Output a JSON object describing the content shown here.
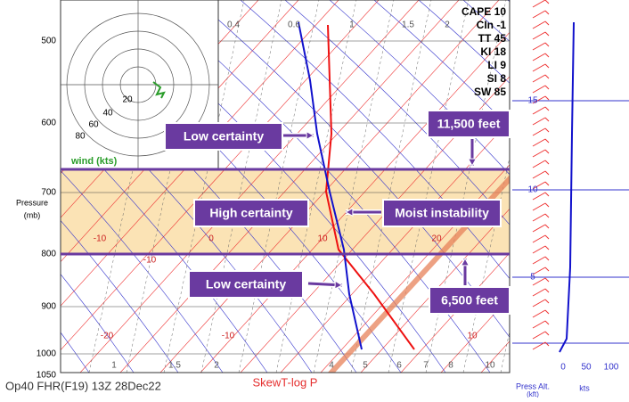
{
  "pressure_axis": {
    "title": "Pressure",
    "unit": "(mb)",
    "labels": [
      "500",
      "600",
      "700",
      "800",
      "900",
      "1000",
      "1050"
    ]
  },
  "hodograph": {
    "rings": [
      "20",
      "40",
      "60",
      "80"
    ],
    "label": "wind (kts)"
  },
  "indices": [
    "CAPE 10",
    "CIn -1",
    "TT 45",
    "KI 18",
    "LI 9",
    "SI 8",
    "SW 85"
  ],
  "isotherm_labels": [
    "-10",
    "0",
    "10",
    "20",
    "-10",
    "-20",
    "-10",
    "10"
  ],
  "mixing_ratio_top": [
    "0.4",
    "0.6",
    "1",
    "1.5",
    "2"
  ],
  "mixing_ratio_bottom": [
    "1",
    "1.5",
    "2",
    "4",
    "5",
    "6",
    "7",
    "8",
    "10"
  ],
  "callouts": [
    "Low certainty",
    "High certainty",
    "Moist instability",
    "11,500 feet",
    "Low certainty",
    "6,500 feet"
  ],
  "right_panel": {
    "alt_labels": [
      "15",
      "10",
      "5"
    ],
    "speed_labels": [
      "0",
      "50",
      "100"
    ],
    "alt_title": "Press Alt.",
    "alt_unit": "(kft)",
    "speed_unit": "kts"
  },
  "footer": {
    "run": "Op40 FHR(F19) 13Z 28Dec22",
    "diagram": "SkewT-log P"
  }
}
